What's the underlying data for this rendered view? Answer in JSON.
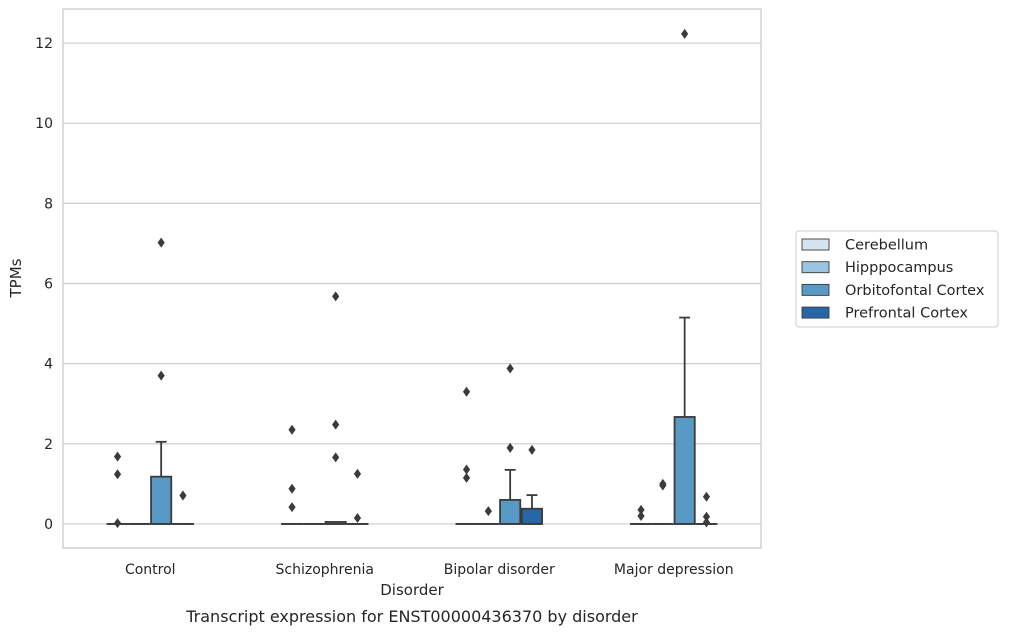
{
  "chart_data": {
    "type": "boxplot",
    "title": "",
    "caption": "Transcript expression for ENST00000436370 by disorder",
    "xlabel": "Disorder",
    "ylabel": "TPMs",
    "ylim": [
      -0.6,
      12.85
    ],
    "yticks": [
      0,
      2,
      4,
      6,
      8,
      10,
      12
    ],
    "grid": "horizontal",
    "legend_placement": "right",
    "categories": [
      "Control",
      "Schizophrenia",
      "Bipolar disorder",
      "Major depression"
    ],
    "series": [
      {
        "name": "Cerebellum",
        "color": "#d6e4f0",
        "boxes": [
          {
            "q1": 0,
            "median": 0,
            "q3": 0,
            "whisker_low": 0,
            "whisker_high": 0,
            "outliers": [
              1.68,
              1.24,
              0.02
            ]
          },
          {
            "q1": 0,
            "median": 0,
            "q3": 0,
            "whisker_low": 0,
            "whisker_high": 0,
            "outliers": [
              2.35,
              0.88,
              0.42
            ]
          },
          {
            "q1": 0,
            "median": 0,
            "q3": 0,
            "whisker_low": 0,
            "whisker_high": 0,
            "outliers": [
              3.3,
              1.36,
              1.15
            ]
          },
          {
            "q1": 0,
            "median": 0,
            "q3": 0,
            "whisker_low": 0,
            "whisker_high": 0,
            "outliers": [
              0.35,
              0.2
            ]
          }
        ]
      },
      {
        "name": "Hipppocampus",
        "color": "#9ac4df",
        "boxes": [
          {
            "q1": 0,
            "median": 0,
            "q3": 0,
            "whisker_low": 0,
            "whisker_high": 0,
            "outliers": []
          },
          {
            "q1": 0,
            "median": 0,
            "q3": 0,
            "whisker_low": 0,
            "whisker_high": 0,
            "outliers": []
          },
          {
            "q1": 0,
            "median": 0,
            "q3": 0,
            "whisker_low": 0,
            "whisker_high": 0,
            "outliers": [
              0.32
            ]
          },
          {
            "q1": 0,
            "median": 0,
            "q3": 0,
            "whisker_low": 0,
            "whisker_high": 0,
            "outliers": [
              1.0,
              0.96
            ]
          }
        ]
      },
      {
        "name": "Orbitofontal Cortex",
        "color": "#5899c6",
        "boxes": [
          {
            "q1": 0,
            "median": 0,
            "q3": 1.18,
            "whisker_low": 0,
            "whisker_high": 2.05,
            "outliers": [
              7.02,
              3.7
            ]
          },
          {
            "q1": 0,
            "median": 0,
            "q3": 0.05,
            "whisker_low": 0,
            "whisker_high": 0.05,
            "outliers": [
              5.68,
              2.48,
              1.66
            ]
          },
          {
            "q1": 0,
            "median": 0,
            "q3": 0.6,
            "whisker_low": 0,
            "whisker_high": 1.35,
            "outliers": [
              3.88,
              1.9
            ]
          },
          {
            "q1": 0,
            "median": 0,
            "q3": 2.67,
            "whisker_low": 0,
            "whisker_high": 5.15,
            "outliers": [
              12.23
            ]
          }
        ]
      },
      {
        "name": "Prefrontal Cortex",
        "color": "#2767a8",
        "boxes": [
          {
            "q1": 0,
            "median": 0,
            "q3": 0,
            "whisker_low": 0,
            "whisker_high": 0,
            "outliers": [
              0.71
            ]
          },
          {
            "q1": 0,
            "median": 0,
            "q3": 0,
            "whisker_low": 0,
            "whisker_high": 0,
            "outliers": [
              1.25,
              0.15
            ]
          },
          {
            "q1": 0,
            "median": 0,
            "q3": 0.38,
            "whisker_low": 0,
            "whisker_high": 0.72,
            "outliers": [
              1.85
            ]
          },
          {
            "q1": 0,
            "median": 0,
            "q3": 0,
            "whisker_low": 0,
            "whisker_high": 0,
            "outliers": [
              0.68,
              0.18,
              0.04
            ]
          }
        ]
      }
    ]
  }
}
